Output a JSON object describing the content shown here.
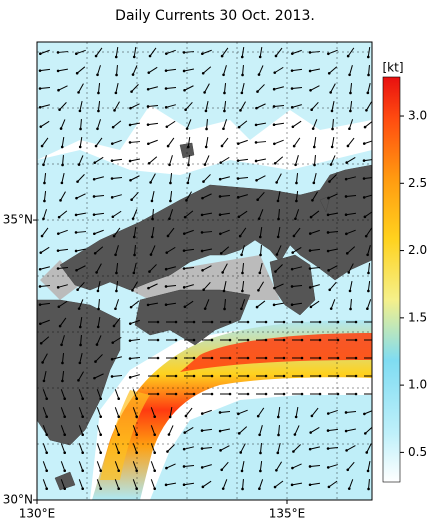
{
  "title": "Daily Currents 30 Oct. 2013.",
  "map": {
    "lonlim": [
      130,
      136.7
    ],
    "latlim": [
      30,
      38.18
    ],
    "lon_ticks": [
      {
        "value": 130,
        "label": "130°E"
      },
      {
        "value": 135,
        "label": "135°E"
      }
    ],
    "lat_ticks": [
      {
        "value": 30,
        "label": "30°N"
      },
      {
        "value": 35,
        "label": "35°N"
      }
    ]
  },
  "colorbar": {
    "label": "[kt]",
    "range": [
      0.28,
      3.29
    ],
    "ticks": [
      {
        "value": 0.5,
        "label": "0.5"
      },
      {
        "value": 1,
        "label": "1.0"
      },
      {
        "value": 1.5,
        "label": "1.5"
      },
      {
        "value": 2,
        "label": "2.0"
      },
      {
        "value": 2.5,
        "label": "2.5"
      },
      {
        "value": 3,
        "label": "3.0"
      }
    ]
  }
}
